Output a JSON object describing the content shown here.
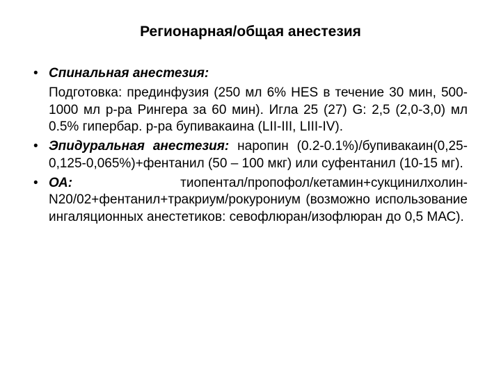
{
  "title": "Регионарная/общая анестезия",
  "items": [
    {
      "bulleted": true,
      "style": "bolditalic",
      "text": "Спинальная анестезия:"
    },
    {
      "bulleted": false,
      "style": "plain",
      "text": "Подготовка: прединфузия (250 мл 6% HES в течение 30 мин, 500-1000 мл р-ра Рингера за 60 мин). Игла 25 (27) G: 2,5 (2,0-3,0) мл 0.5% гипербар. р-ра бупивакаина (LII-III, LIII-IV)."
    },
    {
      "bulleted": true,
      "style": "mixed",
      "lead": "Эпидуральная анестезия:",
      "rest": " наропин (0.2-0.1%)/бупивакаин(0,25-0,125-0,065%)+фентанил (50 – 100 мкг) или суфентанил (10-15 мг)."
    },
    {
      "bulleted": true,
      "style": "mixed",
      "lead": "ОА:",
      "rest": " тиопентал/пропофол/кетамин+сукцинилхолин-N20/02+фентанил+тракриум/рокурониум (возможно использование ингаляционных анестетиков: севофлюран/изофлюран до 0,5 МАС)."
    }
  ]
}
